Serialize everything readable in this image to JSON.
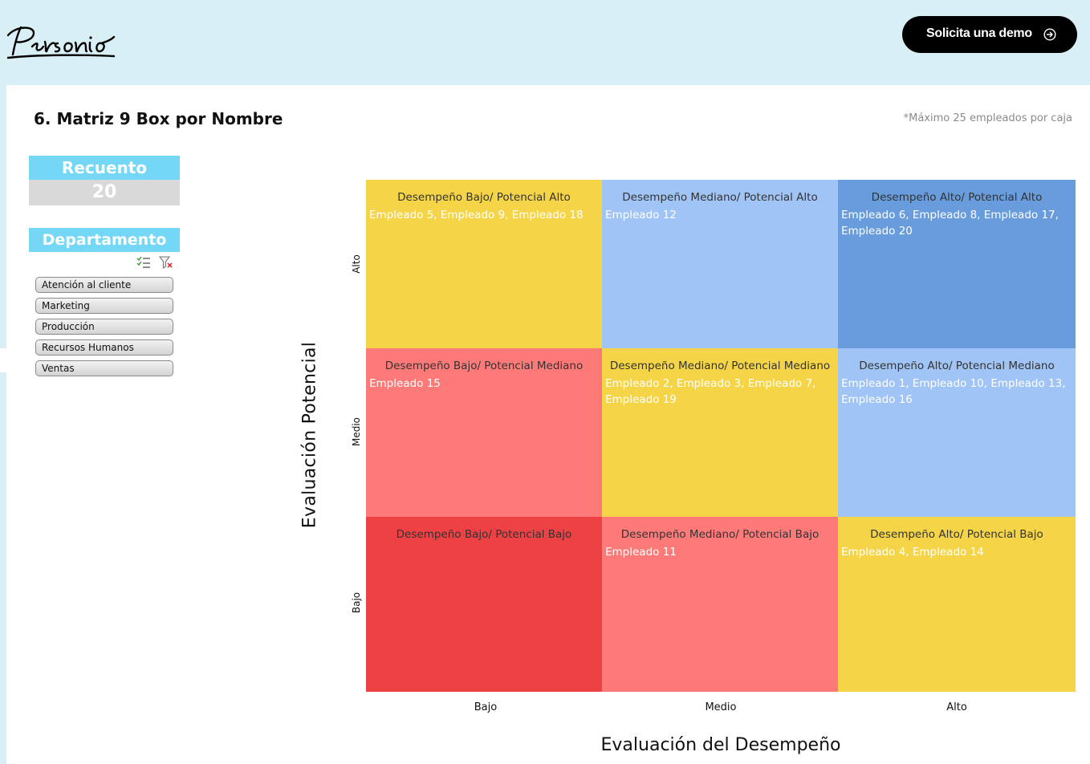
{
  "header": {
    "brand": "Personio",
    "demo_button": "Solicita una demo",
    "colors": {
      "bg": "#d8f0f5",
      "button": "#000000"
    }
  },
  "page": {
    "title": "6. Matriz 9 Box por Nombre",
    "note": "*Máximo 25 empleados por caja"
  },
  "summary": {
    "count_label": "Recuento",
    "count_value": "20"
  },
  "slicer": {
    "title": "Departamento",
    "items": [
      "Atención al cliente",
      "Marketing",
      "Producción",
      "Recursos Humanos",
      "Ventas"
    ],
    "icons": [
      "multi-select-icon",
      "clear-filter-icon"
    ]
  },
  "matrix": {
    "y_title": "Evaluación Potencial",
    "x_title": "Evaluación del Desempeño",
    "y_levels": [
      "Alto",
      "Medio",
      "Bajo"
    ],
    "x_levels": [
      "Bajo",
      "Medio",
      "Alto"
    ],
    "boxes": [
      {
        "title": "Desempeño Bajo/ Potencial Alto",
        "employees": "Empleado 5, Empleado 9, Empleado 18",
        "color": "#f5d547"
      },
      {
        "title": "Desempeño Mediano/ Potencial Alto",
        "employees": "Empleado 12",
        "color": "#a0c4f5"
      },
      {
        "title": "Desempeño Alto/ Potencial Alto",
        "employees": "Empleado 6, Empleado 8, Empleado 17, Empleado 20",
        "color": "#689cdd"
      },
      {
        "title": "Desempeño Bajo/ Potencial Mediano",
        "employees": "Empleado 15",
        "color": "#fd7a79"
      },
      {
        "title": "Desempeño Mediano/ Potencial Mediano",
        "employees": "Empleado 2, Empleado 3, Empleado 7, Empleado 19",
        "color": "#f5d547"
      },
      {
        "title": "Desempeño Alto/ Potencial Mediano",
        "employees": "Empleado 1, Empleado 10, Empleado 13, Empleado 16",
        "color": "#a0c4f5"
      },
      {
        "title": "Desempeño Bajo/ Potencial Bajo",
        "employees": "",
        "color": "#ee4144"
      },
      {
        "title": "Desempeño Mediano/ Potencial Bajo",
        "employees": "Empleado 11",
        "color": "#fd7a79"
      },
      {
        "title": "Desempeño Alto/ Potencial Bajo",
        "employees": "Empleado 4, Empleado 14",
        "color": "#f5d547"
      }
    ]
  }
}
